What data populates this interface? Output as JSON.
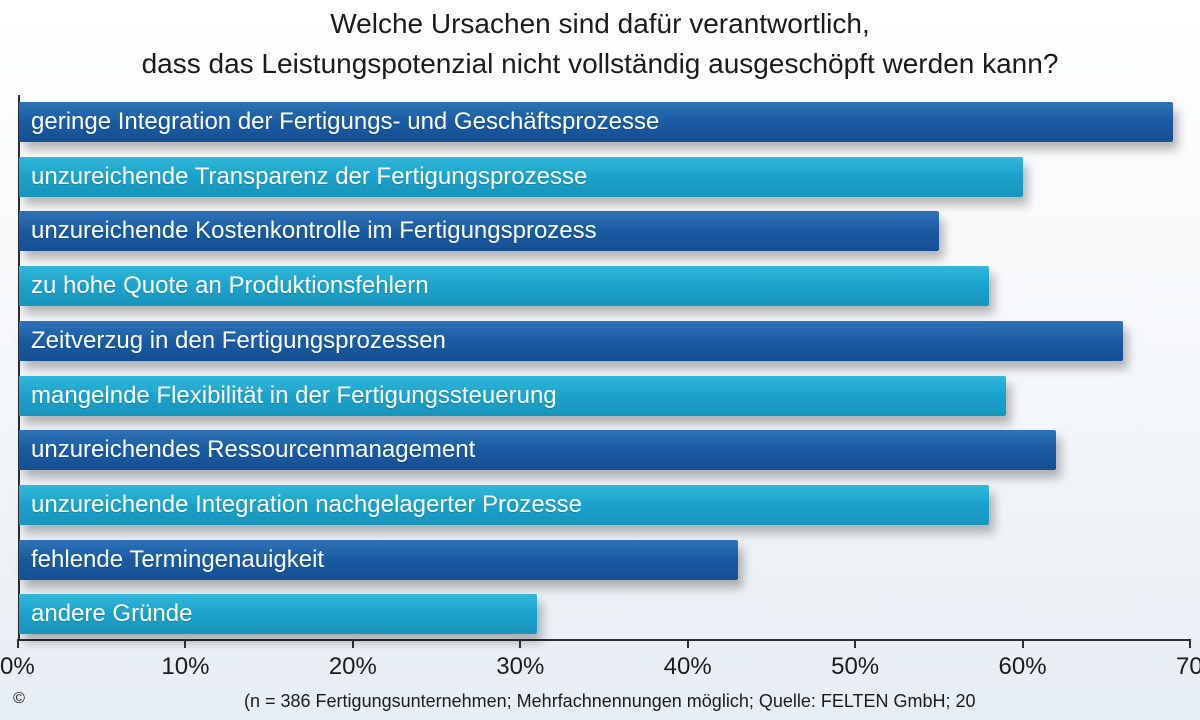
{
  "title": {
    "line1": "Welche Ursachen sind dafür verantwortlich,",
    "line2": "dass das Leistungspotenzial nicht vollständig ausgeschöpft werden kann?"
  },
  "colors": {
    "dark_bar": "#1a5aa3",
    "light_bar": "#1ba1ca",
    "axis": "#2d2d2d",
    "label": "#ffffff"
  },
  "chart_data": {
    "type": "bar",
    "orientation": "horizontal",
    "categories": [
      "geringe Integration der Fertigungs- und Geschäftsprozesse",
      "unzureichende Transparenz der Fertigungsprozesse",
      "unzureichende Kostenkontrolle im Fertigungsprozess",
      "zu hohe Quote an Produktionsfehlern",
      "Zeitverzug in den Fertigungsprozessen",
      "mangelnde Flexibilität in der Fertigungssteuerung",
      "unzureichendes Ressourcenmanagement",
      "unzureichende Integration nachgelagerter Prozesse",
      "fehlende Termingenauigkeit",
      "andere Gründe"
    ],
    "values": [
      69,
      60,
      55,
      58,
      66,
      59,
      62,
      58,
      43,
      31
    ],
    "xlim": [
      0,
      70
    ],
    "ticks": [
      {
        "value": 0,
        "label": "0%"
      },
      {
        "value": 10,
        "label": "10%"
      },
      {
        "value": 20,
        "label": "20%"
      },
      {
        "value": 30,
        "label": "30%"
      },
      {
        "value": 40,
        "label": "40%"
      },
      {
        "value": 50,
        "label": "50%"
      },
      {
        "value": 60,
        "label": "60%"
      },
      {
        "value": 70,
        "label": "70"
      }
    ],
    "bar_colors": [
      "#1a5aa3",
      "#1ba1ca"
    ],
    "grid": false,
    "legend": "none"
  },
  "source": "(n = 386 Fertigungsunternehmen; Mehrfachnennungen möglich; Quelle: FELTEN GmbH; 20",
  "copyright_symbol": "©"
}
